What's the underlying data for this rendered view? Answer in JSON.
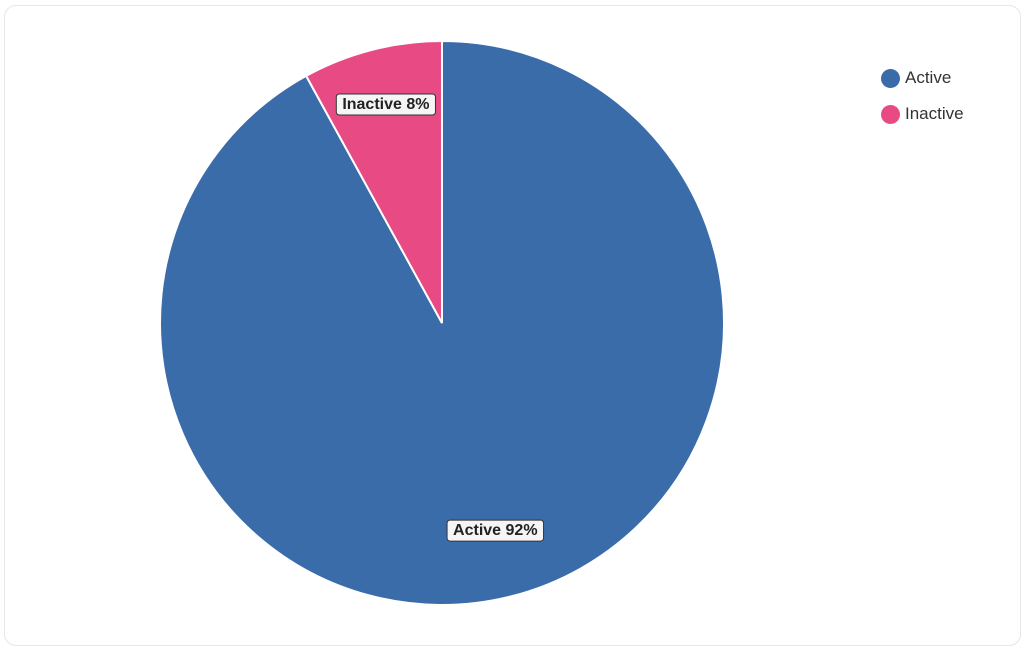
{
  "chart_data": {
    "type": "pie",
    "categories": [
      "Active",
      "Inactive"
    ],
    "values": [
      92,
      8
    ],
    "colors": [
      "#3b6caa",
      "#e84b83"
    ],
    "labels": [
      "Active 92%",
      "Inactive 8%"
    ],
    "legend": "top-right",
    "title": ""
  },
  "legend": {
    "items": [
      {
        "label": "Active",
        "color": "#3b6caa"
      },
      {
        "label": "Inactive",
        "color": "#e84b83"
      }
    ]
  }
}
